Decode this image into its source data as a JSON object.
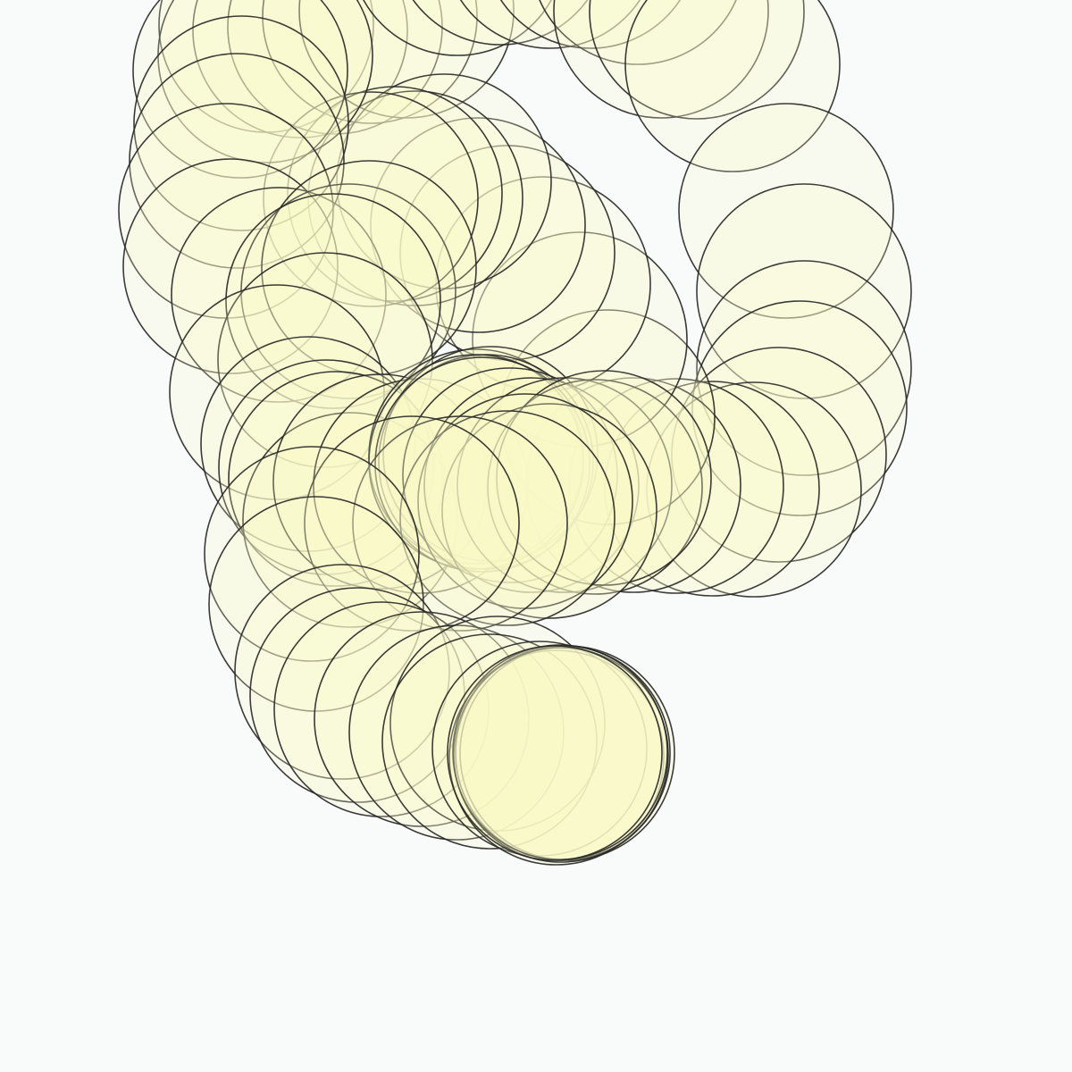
{
  "artwork": {
    "description_free": true,
    "fill_color": "#fafac8",
    "stroke_color": "#262626",
    "background_color": "#f9fafa"
  }
}
